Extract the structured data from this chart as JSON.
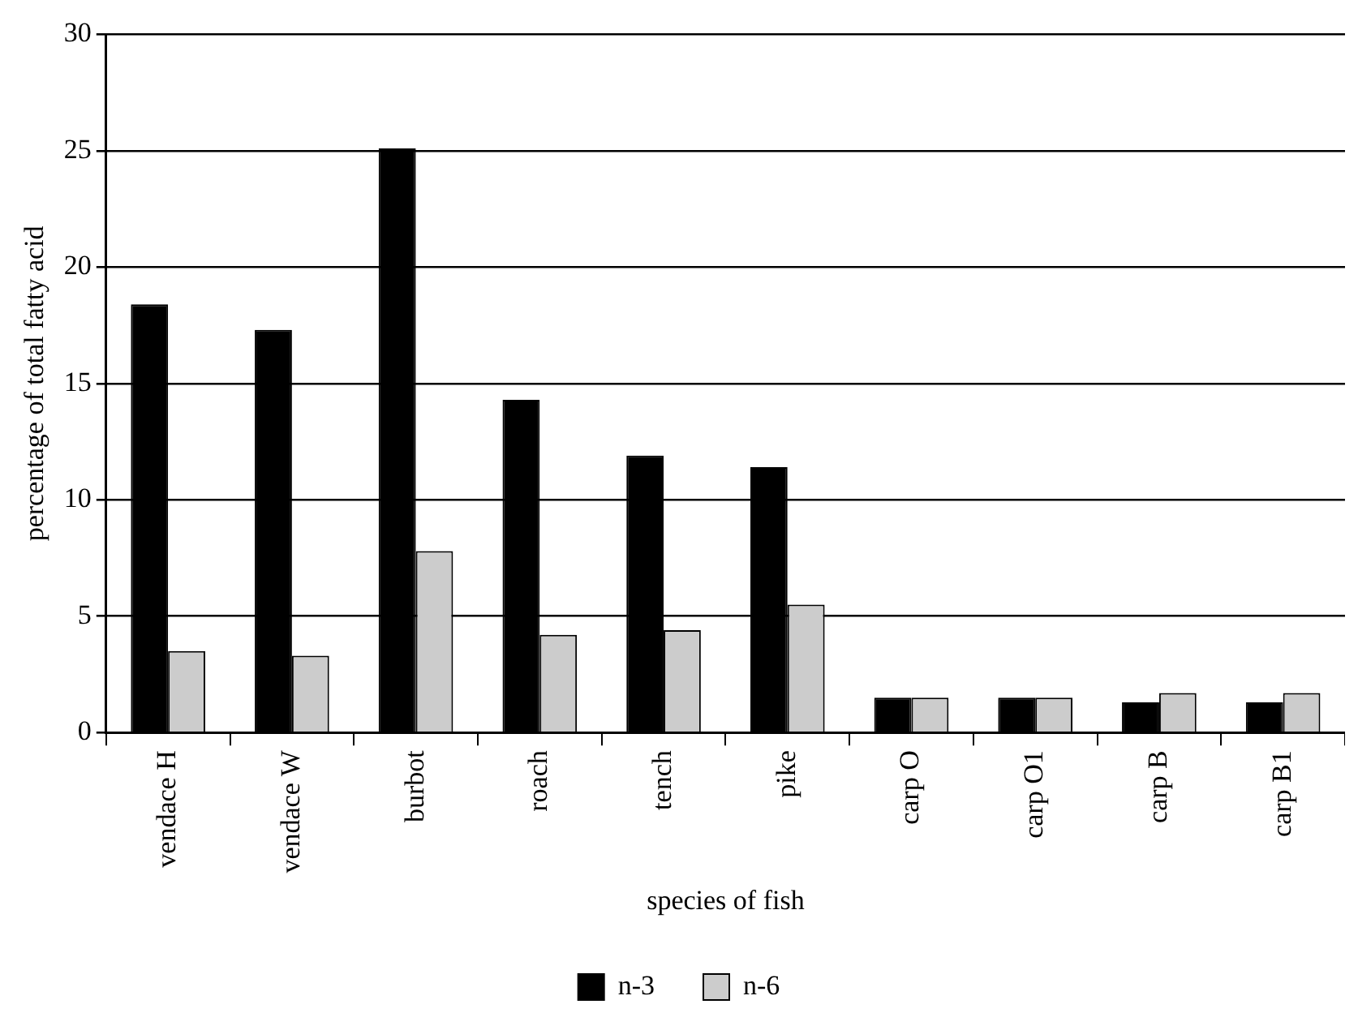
{
  "chart_data": {
    "type": "bar",
    "xlabel": "species of fish",
    "ylabel": "percentage of total fatty acid",
    "categories": [
      "vendace H",
      "vendace W",
      "burbot",
      "roach",
      "tench",
      "pike",
      "carp O",
      "carp O1",
      "carp B",
      "carp B1"
    ],
    "series": [
      {
        "name": "n-3",
        "color": "#000000",
        "values": [
          18.4,
          17.3,
          25.1,
          14.3,
          11.9,
          11.4,
          1.5,
          1.5,
          1.3,
          1.3
        ]
      },
      {
        "name": "n-6",
        "color": "#cccccc",
        "values": [
          3.5,
          3.3,
          7.8,
          4.2,
          4.4,
          5.5,
          1.5,
          1.5,
          1.7,
          1.7
        ]
      }
    ],
    "ylim": [
      0,
      30
    ],
    "yticks": [
      0,
      5,
      10,
      15,
      20,
      25,
      30
    ],
    "grid": "y",
    "legend": "bottom"
  }
}
